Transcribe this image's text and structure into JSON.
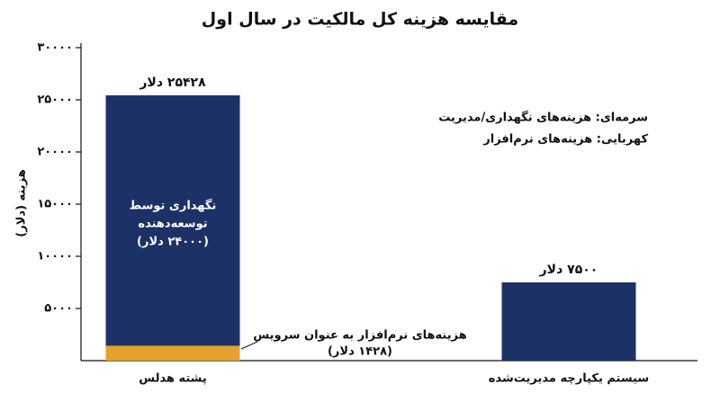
{
  "chart_data": {
    "type": "stacked-bar",
    "title": "مقایسه هزینه کل مالکیت در سال اول",
    "y_label": "هزینه (دلار)",
    "categories": [
      "پشته هدلس",
      "سیستم یکپارچه مدیریت‌شده"
    ],
    "series": [
      {
        "name": "سرمه‌ای: هزینه‌های نگهداری/مدیریت",
        "color": "#1c3166",
        "values": [
          24000,
          7500
        ]
      },
      {
        "name": "کهربایی: هزینه‌های نرم‌افزار",
        "color": "#e5a02e",
        "values": [
          1428,
          0
        ]
      }
    ],
    "totals": {
      "values": [
        25428,
        7500
      ],
      "value_labels": [
        "۲۵۴۲۸ دلار",
        "۷۵۰۰ دلار"
      ]
    },
    "annotations": [
      {
        "lines": [
          "نگهداری توسط",
          "توسعه‌دهنده",
          "(۲۴۰۰۰ دلار)"
        ]
      },
      {
        "lines": [
          "هزینه‌های نرم‌افزار به عنوان سرویس",
          "(۱۴۲۸ دلار)"
        ]
      }
    ],
    "ylim": [
      0,
      30000
    ],
    "yticks": [
      {
        "value": 5000,
        "label": "۵۰۰۰"
      },
      {
        "value": 10000,
        "label": "۱۰۰۰۰"
      },
      {
        "value": 15000,
        "label": "۱۵۰۰۰"
      },
      {
        "value": 20000,
        "label": "۲۰۰۰۰"
      },
      {
        "value": 25000,
        "label": "۲۵۰۰۰"
      },
      {
        "value": 30000,
        "label": "۳۰۰۰۰"
      }
    ]
  }
}
